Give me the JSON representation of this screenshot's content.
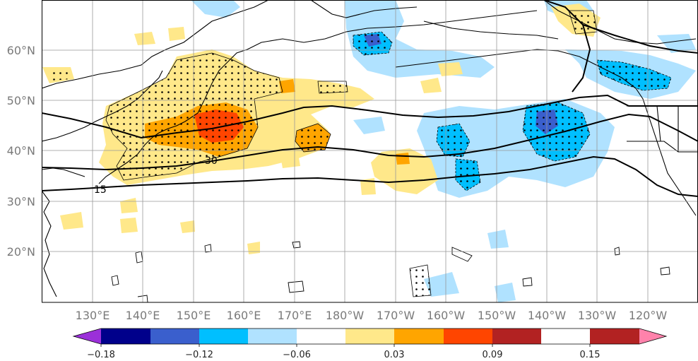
{
  "map": {
    "lat_labels": [
      "60°N",
      "50°N",
      "40°N",
      "30°N",
      "20°N"
    ],
    "lon_labels": [
      "130°E",
      "140°E",
      "150°E",
      "160°E",
      "170°E",
      "180°W",
      "170°W",
      "160°W",
      "150°W",
      "140°W",
      "130°W",
      "120°W"
    ],
    "contour_labels": [
      "30",
      "15"
    ],
    "lat_range": [
      10,
      70
    ],
    "lon_range_east": [
      120,
      250
    ]
  },
  "colorbar": {
    "colors": [
      "#9b30d9",
      "#00008b",
      "#3a5fcd",
      "#00bfff",
      "#b0e2ff",
      "#ffffff",
      "#ffe88a",
      "#ffa500",
      "#ff4500",
      "#b22222",
      "#ff82ab"
    ],
    "tick_labels": [
      "−0.18",
      "−0.12",
      "−0.06",
      "0.03",
      "0.09",
      "0.15"
    ]
  }
}
